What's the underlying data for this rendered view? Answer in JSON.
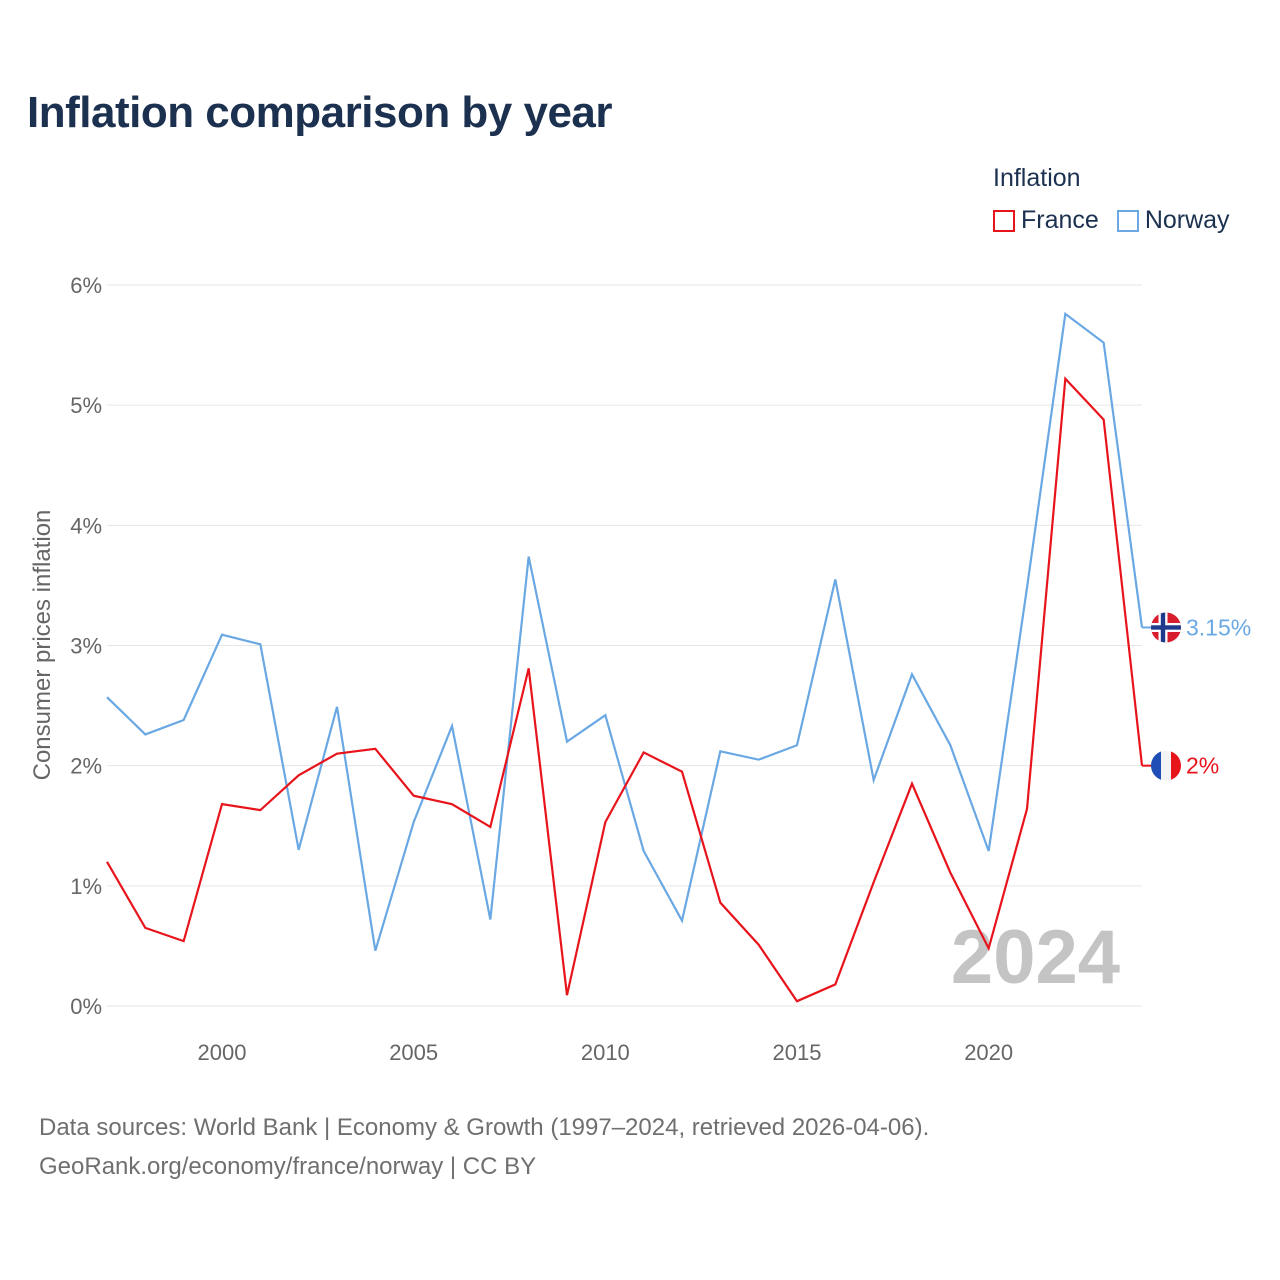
{
  "title": "Inflation comparison by year",
  "legend": {
    "title": "Inflation",
    "items": [
      {
        "label": "France",
        "color": "#e8141c"
      },
      {
        "label": "Norway",
        "color": "#6aa8e4"
      }
    ]
  },
  "footer": {
    "line1": "Data sources: World Bank | Economy & Growth (1997–2024, retrieved 2026-04-06).",
    "line2": "GeoRank.org/economy/france/norway | CC BY"
  },
  "chart_data": {
    "type": "line",
    "title": "Inflation comparison by year",
    "xlabel": "",
    "ylabel": "Consumer prices inflation",
    "xlim": [
      1997,
      2024
    ],
    "ylim": [
      0,
      6
    ],
    "x_ticks": [
      2000,
      2005,
      2010,
      2015,
      2020
    ],
    "x_tick_labels": [
      "2000",
      "2005",
      "2010",
      "2015",
      "2020"
    ],
    "y_ticks": [
      0,
      1,
      2,
      3,
      4,
      5,
      6
    ],
    "y_tick_labels": [
      "0%",
      "1%",
      "2%",
      "3%",
      "4%",
      "5%",
      "6%"
    ],
    "grid": true,
    "watermark": "2024",
    "x": [
      1997,
      1998,
      1999,
      2000,
      2001,
      2002,
      2003,
      2004,
      2005,
      2006,
      2007,
      2008,
      2009,
      2010,
      2011,
      2012,
      2013,
      2014,
      2015,
      2016,
      2017,
      2018,
      2019,
      2020,
      2021,
      2022,
      2023,
      2024
    ],
    "series": [
      {
        "name": "Norway",
        "color": "#6aa8e4",
        "end_label": "3.15%",
        "values": [
          2.57,
          2.26,
          2.38,
          3.09,
          3.01,
          1.3,
          2.49,
          0.46,
          1.53,
          2.33,
          0.72,
          3.74,
          2.2,
          2.42,
          1.29,
          0.71,
          2.12,
          2.05,
          2.17,
          3.55,
          1.88,
          2.76,
          2.17,
          1.29,
          3.48,
          5.76,
          5.52,
          3.15
        ]
      },
      {
        "name": "France",
        "color": "#e8141c",
        "end_label": "2%",
        "values": [
          1.2,
          0.65,
          0.54,
          1.68,
          1.63,
          1.92,
          2.1,
          2.14,
          1.75,
          1.68,
          1.49,
          2.81,
          0.09,
          1.53,
          2.11,
          1.95,
          0.86,
          0.51,
          0.04,
          0.18,
          1.03,
          1.85,
          1.11,
          0.48,
          1.64,
          5.22,
          4.88,
          2.0
        ]
      }
    ]
  }
}
